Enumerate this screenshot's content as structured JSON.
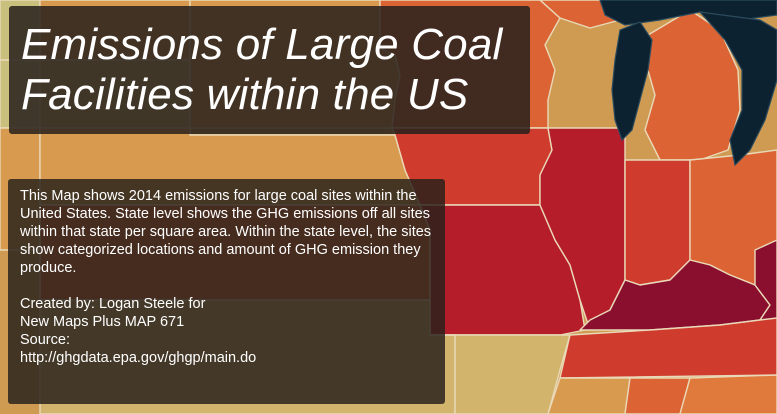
{
  "title": {
    "line1": "Emissions of Large Coal",
    "line2": "Facilities within the US"
  },
  "info": {
    "description": "This Map shows 2014 emissions for large coal sites within the United States. State level shows the GHG emissions off all sites within that state per square area. Within the state level, the sites show categorized locations and amount of GHG emission they produce.",
    "credit_line1": "Created by: Logan Steele for",
    "credit_line2": "New Maps Plus MAP 671",
    "source_label": "Source:",
    "source_url": "http://ghgdata.epa.gov/ghgp/main.do"
  },
  "colors": {
    "very_high": "#8a0f2e",
    "high": "#b61d2a",
    "mid_high": "#cf3b2c",
    "mid": "#dc6434",
    "mid_low": "#df7a3c",
    "low": "#d89a4f",
    "very_low": "#d2b46c",
    "lowest": "#c9c07e",
    "water": "#0d2230",
    "border": "#e9d9b8"
  }
}
